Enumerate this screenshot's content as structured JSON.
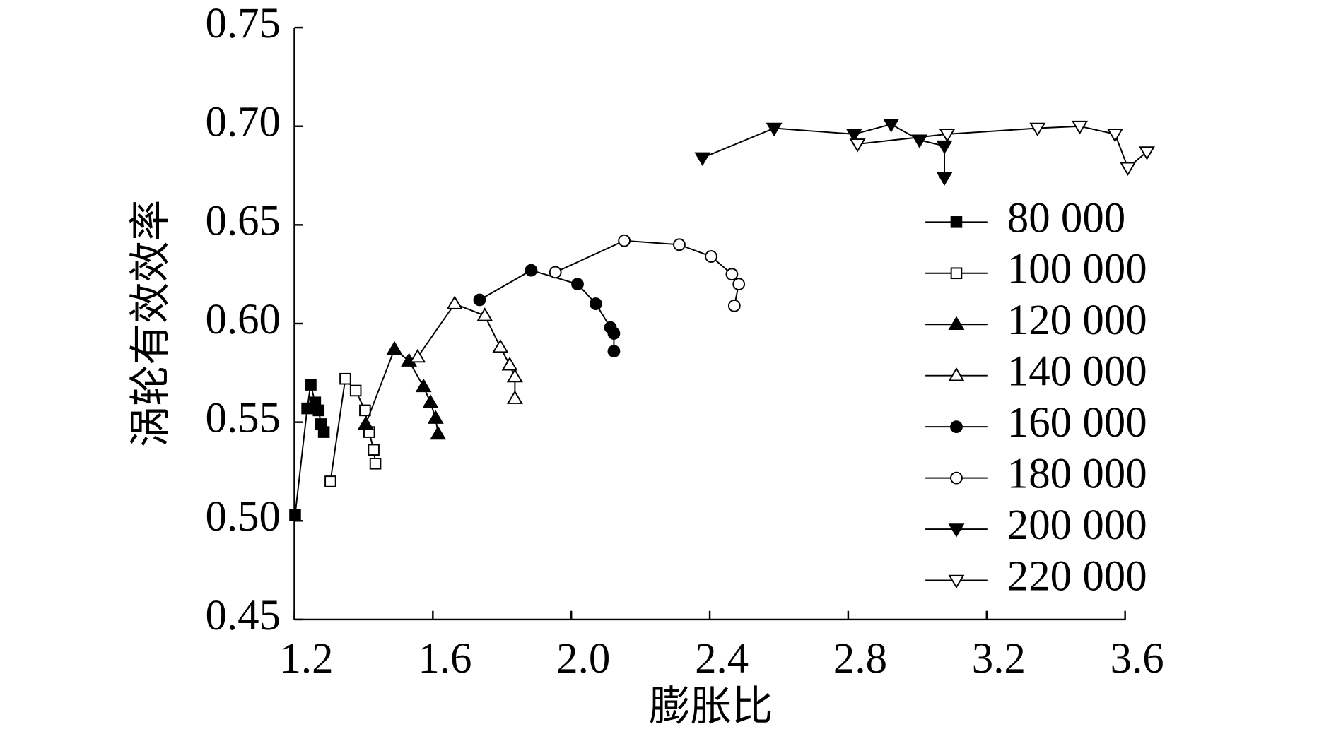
{
  "chart_data": {
    "type": "line",
    "x_label": "膨胀比",
    "y_label": "涡轮有效效率",
    "xlim": [
      1.2,
      3.6
    ],
    "ylim": [
      0.45,
      0.75
    ],
    "xticks": [
      1.2,
      1.6,
      {
        "value": 2,
        "label": "2.0"
      },
      2.4,
      2.8,
      3.2,
      3.6
    ],
    "yticks": [
      0.45,
      {
        "value": 0.5,
        "label": "0.50"
      },
      0.55,
      {
        "value": 0.6,
        "label": "0.60"
      },
      0.65,
      {
        "value": 0.7,
        "label": "0.70"
      },
      0.75
    ],
    "grid": false,
    "legend": "right",
    "series": [
      {
        "name": "80 000",
        "color": "#000000",
        "marker": "square",
        "filled": true,
        "x": [
          1.202,
          1.237,
          1.247,
          1.26,
          1.27,
          1.277,
          1.285
        ],
        "values": [
          0.503,
          0.557,
          0.569,
          0.56,
          0.556,
          0.549,
          0.545
        ]
      },
      {
        "name": "100 000",
        "color": "#000000",
        "marker": "square",
        "filled": false,
        "x": [
          1.304,
          1.347,
          1.377,
          1.404,
          1.416,
          1.429,
          1.434
        ],
        "values": [
          0.52,
          0.572,
          0.566,
          0.556,
          0.545,
          0.536,
          0.529
        ]
      },
      {
        "name": "120 000",
        "color": "#000000",
        "marker": "triangle-up",
        "filled": true,
        "x": [
          1.406,
          1.489,
          1.531,
          1.573,
          1.593,
          1.608,
          1.615
        ],
        "values": [
          0.549,
          0.587,
          0.581,
          0.568,
          0.56,
          0.552,
          0.544
        ]
      },
      {
        "name": "140 000",
        "color": "#000000",
        "marker": "triangle-up",
        "filled": false,
        "x": [
          1.556,
          1.663,
          1.75,
          1.795,
          1.822,
          1.837,
          1.837
        ],
        "values": [
          0.583,
          0.61,
          0.604,
          0.588,
          0.579,
          0.573,
          0.562
        ]
      },
      {
        "name": "160 000",
        "color": "#000000",
        "marker": "circle",
        "filled": true,
        "x": [
          1.735,
          1.884,
          2.018,
          2.071,
          2.113,
          2.123,
          2.123
        ],
        "values": [
          0.612,
          0.627,
          0.62,
          0.61,
          0.598,
          0.595,
          0.586
        ]
      },
      {
        "name": "180 000",
        "color": "#000000",
        "marker": "circle",
        "filled": false,
        "x": [
          1.954,
          2.153,
          2.312,
          2.404,
          2.464,
          2.484,
          2.471
        ],
        "values": [
          0.626,
          0.642,
          0.64,
          0.634,
          0.625,
          0.62,
          0.609
        ]
      },
      {
        "name": "200 000",
        "color": "#000000",
        "marker": "triangle-down",
        "filled": true,
        "x": [
          2.379,
          2.586,
          2.817,
          2.924,
          3.006,
          3.078,
          3.078
        ],
        "values": [
          0.684,
          0.699,
          0.696,
          0.701,
          0.693,
          0.69,
          0.674
        ]
      },
      {
        "name": "220 000",
        "color": "#000000",
        "marker": "triangle-down",
        "filled": false,
        "x": [
          2.827,
          3.086,
          3.347,
          3.469,
          3.571,
          3.608,
          3.663
        ],
        "values": [
          0.691,
          0.696,
          0.699,
          0.7,
          0.696,
          0.679,
          0.687
        ]
      }
    ]
  }
}
